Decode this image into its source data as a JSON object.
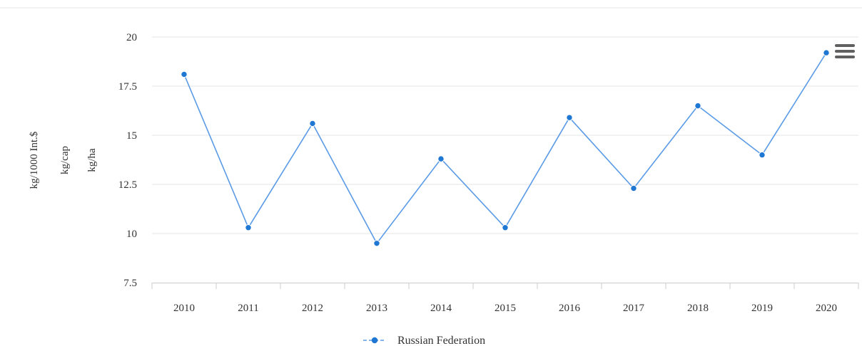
{
  "chart_data": {
    "type": "line",
    "title": "",
    "categories": [
      "2010",
      "2011",
      "2012",
      "2013",
      "2014",
      "2015",
      "2016",
      "2017",
      "2018",
      "2019",
      "2020"
    ],
    "series": [
      {
        "name": "Russian Federation",
        "values": [
          18.1,
          10.3,
          15.6,
          9.5,
          13.8,
          10.3,
          15.9,
          12.3,
          16.5,
          14.0,
          19.2
        ]
      }
    ],
    "ylabels": [
      "kg/1000 Int.$",
      "kg/cap",
      "kg/ha"
    ],
    "yticks": [
      "7.5",
      "10",
      "12.5",
      "15",
      "17.5",
      "20"
    ],
    "ylim": [
      7.5,
      20
    ],
    "grid": true,
    "legend_position": "bottom-center"
  },
  "colors": {
    "series": "#1f77d4",
    "line": "#5b9be6",
    "grid": "#e6e6e6",
    "axis": "#cccccc",
    "menu": "#606060"
  },
  "icons": {
    "menu": "hamburger-menu-icon"
  }
}
